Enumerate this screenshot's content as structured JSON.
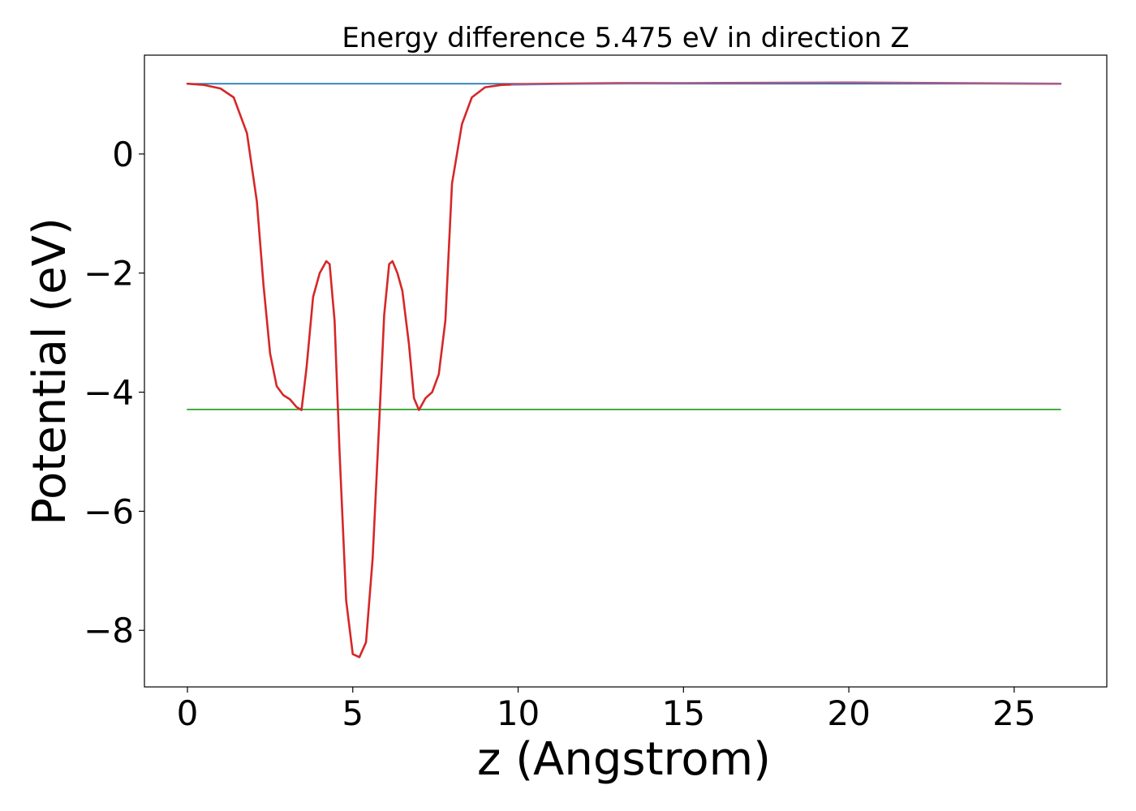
{
  "chart_data": {
    "type": "line",
    "title": "Energy difference 5.475 eV in direction Z",
    "xlabel": "z (Angstrom)",
    "ylabel": "Potential (eV)",
    "xlim": [
      -1.3,
      27.8
    ],
    "ylim": [
      -8.95,
      1.66
    ],
    "xticks": [
      0,
      5,
      10,
      15,
      20,
      25
    ],
    "xtick_labels": [
      "0",
      "5",
      "10",
      "15",
      "20",
      "25"
    ],
    "yticks": [
      0,
      -2,
      -4,
      -6,
      -8
    ],
    "ytick_labels": [
      "0",
      "−2",
      "−4",
      "−6",
      "−8"
    ],
    "grid": false,
    "legend": false,
    "colors": {
      "vacuum_level": "#1f77b4",
      "fermi_level": "#2ca02c",
      "potential": "#d62728",
      "averaged": "#8a6fb0"
    },
    "series": [
      {
        "key": "vacuum_level",
        "style": "thin",
        "x": [
          0,
          26.4
        ],
        "y": [
          1.18,
          1.18
        ]
      },
      {
        "key": "fermi_level",
        "style": "thin",
        "x": [
          0,
          26.4
        ],
        "y": [
          -4.29,
          -4.29
        ]
      },
      {
        "key": "potential",
        "style": "thick",
        "x": [
          0,
          0.5,
          1.0,
          1.4,
          1.8,
          2.1,
          2.3,
          2.5,
          2.7,
          2.9,
          3.1,
          3.3,
          3.45,
          3.6,
          3.8,
          4.0,
          4.2,
          4.3,
          4.45,
          4.6,
          4.8,
          5.0,
          5.2,
          5.4,
          5.6,
          5.8,
          5.95,
          6.1,
          6.2,
          6.35,
          6.5,
          6.7,
          6.85,
          7.0,
          7.2,
          7.4,
          7.6,
          7.8,
          8.0,
          8.3,
          8.6,
          9.0,
          9.5,
          10.0,
          11,
          13,
          15,
          20,
          26.4
        ],
        "y": [
          1.18,
          1.16,
          1.1,
          0.95,
          0.35,
          -0.8,
          -2.2,
          -3.35,
          -3.9,
          -4.05,
          -4.12,
          -4.25,
          -4.3,
          -3.6,
          -2.4,
          -2.0,
          -1.8,
          -1.85,
          -2.8,
          -5.0,
          -7.5,
          -8.4,
          -8.45,
          -8.2,
          -6.8,
          -4.5,
          -2.7,
          -1.85,
          -1.8,
          -2.0,
          -2.3,
          -3.2,
          -4.1,
          -4.3,
          -4.1,
          -4.0,
          -3.7,
          -2.8,
          -0.5,
          0.5,
          0.95,
          1.12,
          1.16,
          1.17,
          1.18,
          1.19,
          1.19,
          1.2,
          1.18
        ]
      },
      {
        "key": "averaged",
        "style": "thin",
        "x": [
          9.8,
          11,
          13,
          15,
          20,
          26.4
        ],
        "y": [
          1.16,
          1.17,
          1.18,
          1.19,
          1.2,
          1.18
        ]
      }
    ]
  }
}
